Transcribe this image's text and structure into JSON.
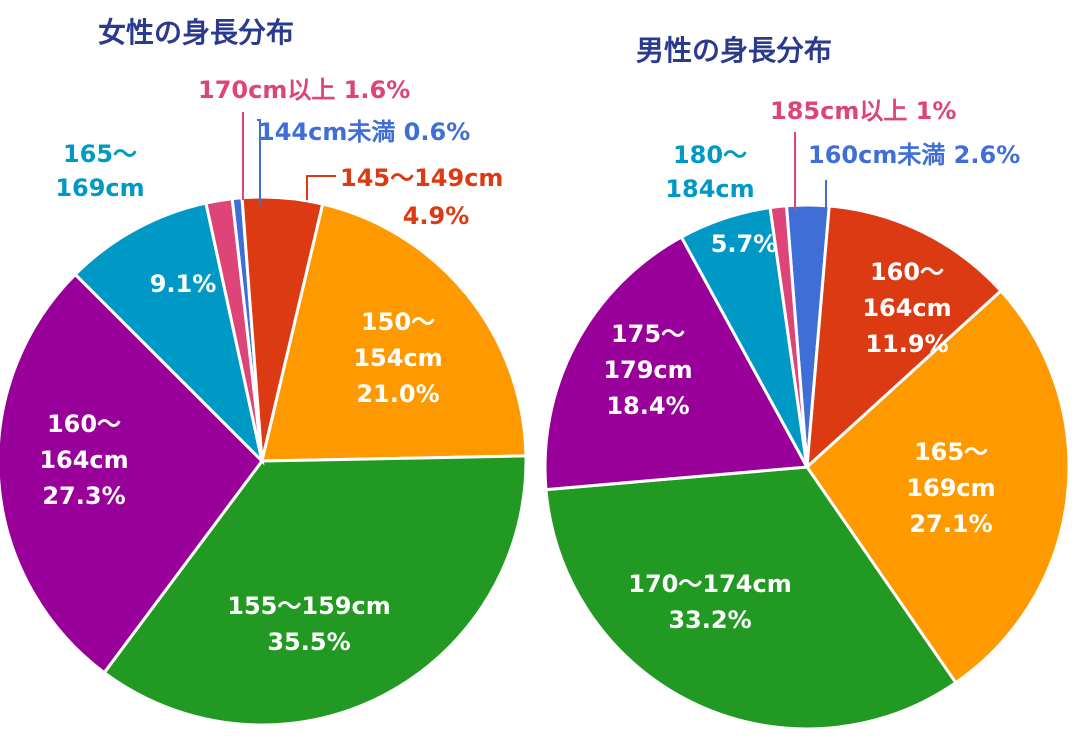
{
  "colors": {
    "blue": "#3f6fd6",
    "red": "#dc3a12",
    "orange": "#ff9900",
    "green": "#229922",
    "purple": "#990099",
    "cyan": "#0099c6",
    "pink": "#dd4477",
    "title": "#2b3a8c"
  },
  "chart_data": [
    {
      "type": "pie",
      "title": "女性の身長分布",
      "slices": [
        {
          "label": "144cm未満",
          "value": 0.6,
          "color": "#3f6fd6",
          "text": [
            "144cm未満 0.6%"
          ]
        },
        {
          "label": "145〜149cm",
          "value": 4.9,
          "color": "#dc3a12",
          "text": [
            "145〜149cm",
            "4.9%"
          ]
        },
        {
          "label": "150〜154cm",
          "value": 21.0,
          "color": "#ff9900",
          "text": [
            "150〜",
            "154cm",
            "21.0%"
          ]
        },
        {
          "label": "155〜159cm",
          "value": 35.5,
          "color": "#229922",
          "text": [
            "155〜159cm",
            "35.5%"
          ]
        },
        {
          "label": "160〜164cm",
          "value": 27.3,
          "color": "#990099",
          "text": [
            "160〜",
            "164cm",
            "27.3%"
          ]
        },
        {
          "label": "165〜169cm",
          "value": 9.1,
          "color": "#0099c6",
          "text": [
            "9.1%"
          ],
          "outer_text": [
            "165〜",
            "169cm"
          ]
        },
        {
          "label": "170cm以上",
          "value": 1.6,
          "color": "#dd4477",
          "text": [
            "170cm以上 1.6%"
          ]
        }
      ]
    },
    {
      "type": "pie",
      "title": "男性の身長分布",
      "slices": [
        {
          "label": "160cm未満",
          "value": 2.6,
          "color": "#3f6fd6",
          "text": [
            "160cm未満 2.6%"
          ]
        },
        {
          "label": "160〜164cm",
          "value": 11.9,
          "color": "#dc3a12",
          "text": [
            "160〜",
            "164cm",
            "11.9%"
          ]
        },
        {
          "label": "165〜169cm",
          "value": 27.1,
          "color": "#ff9900",
          "text": [
            "165〜",
            "169cm",
            "27.1%"
          ]
        },
        {
          "label": "170〜174cm",
          "value": 33.2,
          "color": "#229922",
          "text": [
            "170〜174cm",
            "33.2%"
          ]
        },
        {
          "label": "175〜179cm",
          "value": 18.4,
          "color": "#990099",
          "text": [
            "175〜",
            "179cm",
            "18.4%"
          ]
        },
        {
          "label": "180〜184cm",
          "value": 5.7,
          "color": "#0099c6",
          "text": [
            "5.7%"
          ],
          "outer_text": [
            "180〜",
            "184cm"
          ]
        },
        {
          "label": "185cm以上",
          "value": 1,
          "color": "#dd4477",
          "text": [
            "185cm以上 1%"
          ]
        }
      ]
    }
  ]
}
